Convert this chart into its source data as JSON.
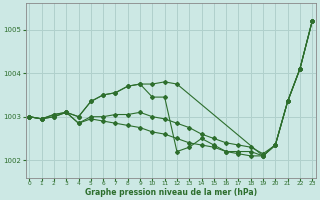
{
  "title": "Graphe pression niveau de la mer (hPa)",
  "bg_color": "#cce8e4",
  "grid_color": "#b0d0cc",
  "line_color": "#2d6e2d",
  "ylim": [
    1001.6,
    1005.6
  ],
  "xlim": [
    -0.3,
    23.3
  ],
  "yticks": [
    1002,
    1003,
    1004,
    1005
  ],
  "xticks": [
    0,
    1,
    2,
    3,
    4,
    5,
    6,
    7,
    8,
    9,
    10,
    11,
    12,
    13,
    14,
    15,
    16,
    17,
    18,
    19,
    20,
    21,
    22,
    23
  ],
  "series": [
    {
      "x": [
        0,
        1,
        2,
        3,
        4,
        5,
        6,
        7,
        8,
        9,
        10,
        11,
        12,
        19,
        20,
        21,
        22,
        23
      ],
      "y": [
        1003.0,
        1002.95,
        1003.05,
        1003.1,
        1003.0,
        1003.35,
        1003.5,
        1003.55,
        1003.7,
        1003.75,
        1003.75,
        1003.8,
        1003.75,
        1002.1,
        1002.35,
        1003.35,
        1004.1,
        1005.2
      ]
    },
    {
      "x": [
        0,
        1,
        2,
        3,
        4,
        5,
        6,
        7,
        8,
        9,
        10,
        11,
        12,
        13,
        14,
        15,
        16,
        17,
        18,
        19,
        20,
        21,
        22,
        23
      ],
      "y": [
        1003.0,
        1002.95,
        1003.05,
        1003.1,
        1003.0,
        1003.35,
        1003.5,
        1003.55,
        1003.7,
        1003.75,
        1003.45,
        1003.45,
        1002.2,
        1002.3,
        1002.5,
        1002.35,
        1002.2,
        1002.2,
        1002.2,
        1002.1,
        1002.35,
        1003.35,
        1004.1,
        1005.2
      ]
    },
    {
      "x": [
        0,
        1,
        2,
        3,
        4,
        5,
        6,
        7,
        8,
        9,
        10,
        11,
        12,
        13,
        14,
        15,
        16,
        17,
        18,
        19,
        20,
        21,
        22,
        23
      ],
      "y": [
        1003.0,
        1002.95,
        1003.0,
        1003.1,
        1002.85,
        1003.0,
        1003.0,
        1003.05,
        1003.05,
        1003.1,
        1003.0,
        1002.95,
        1002.85,
        1002.75,
        1002.6,
        1002.5,
        1002.4,
        1002.35,
        1002.3,
        1002.15,
        1002.35,
        1003.35,
        1004.1,
        1005.2
      ]
    },
    {
      "x": [
        0,
        1,
        2,
        3,
        4,
        5,
        6,
        7,
        8,
        9,
        10,
        11,
        12,
        13,
        14,
        15,
        16,
        17,
        18,
        19,
        20,
        21,
        22,
        23
      ],
      "y": [
        1003.0,
        1002.95,
        1003.0,
        1003.1,
        1002.85,
        1002.95,
        1002.9,
        1002.85,
        1002.8,
        1002.75,
        1002.65,
        1002.6,
        1002.5,
        1002.4,
        1002.35,
        1002.3,
        1002.2,
        1002.15,
        1002.1,
        1002.1,
        1002.35,
        1003.35,
        1004.1,
        1005.2
      ]
    }
  ]
}
